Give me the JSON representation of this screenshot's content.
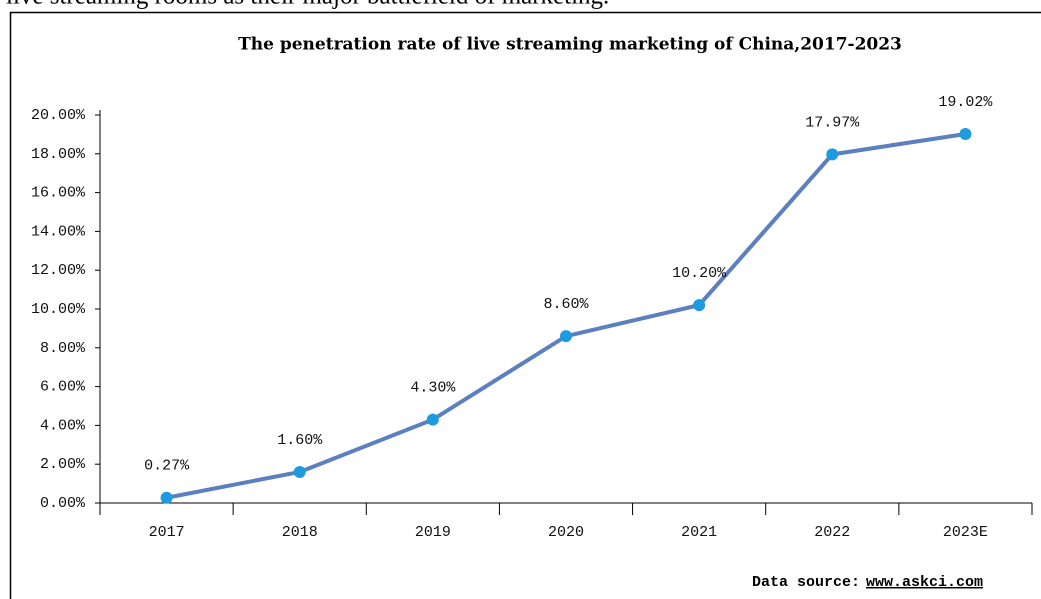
{
  "caption_above": "live streaming rooms as their major battlefield of marketing.",
  "chart_data": {
    "type": "line",
    "title": "The penetration rate of live streaming marketing of China,2017-2023",
    "categories": [
      "2017",
      "2018",
      "2019",
      "2020",
      "2021",
      "2022",
      "2023E"
    ],
    "values": [
      0.27,
      1.6,
      4.3,
      8.6,
      10.2,
      17.97,
      19.02
    ],
    "value_labels": [
      "0.27%",
      "1.60%",
      "4.30%",
      "8.60%",
      "10.20%",
      "17.97%",
      "19.02%"
    ],
    "color": "#5b7fbf",
    "marker_color": "#1e9be0",
    "ylim": [
      0,
      20
    ],
    "yticks": [
      {
        "value": 0,
        "label": "0.00%"
      },
      {
        "value": 2,
        "label": "2.00%"
      },
      {
        "value": 4,
        "label": "4.00%"
      },
      {
        "value": 6,
        "label": "6.00%"
      },
      {
        "value": 8,
        "label": "8.00%"
      },
      {
        "value": 10,
        "label": "10.00%"
      },
      {
        "value": 12,
        "label": "12.00%"
      },
      {
        "value": 14,
        "label": "14.00%"
      },
      {
        "value": 16,
        "label": "16.00%"
      },
      {
        "value": 18,
        "label": "18.00%"
      },
      {
        "value": 20,
        "label": "20.00%"
      }
    ],
    "source_label": "Data source:",
    "source_link": "www.askci.com"
  }
}
